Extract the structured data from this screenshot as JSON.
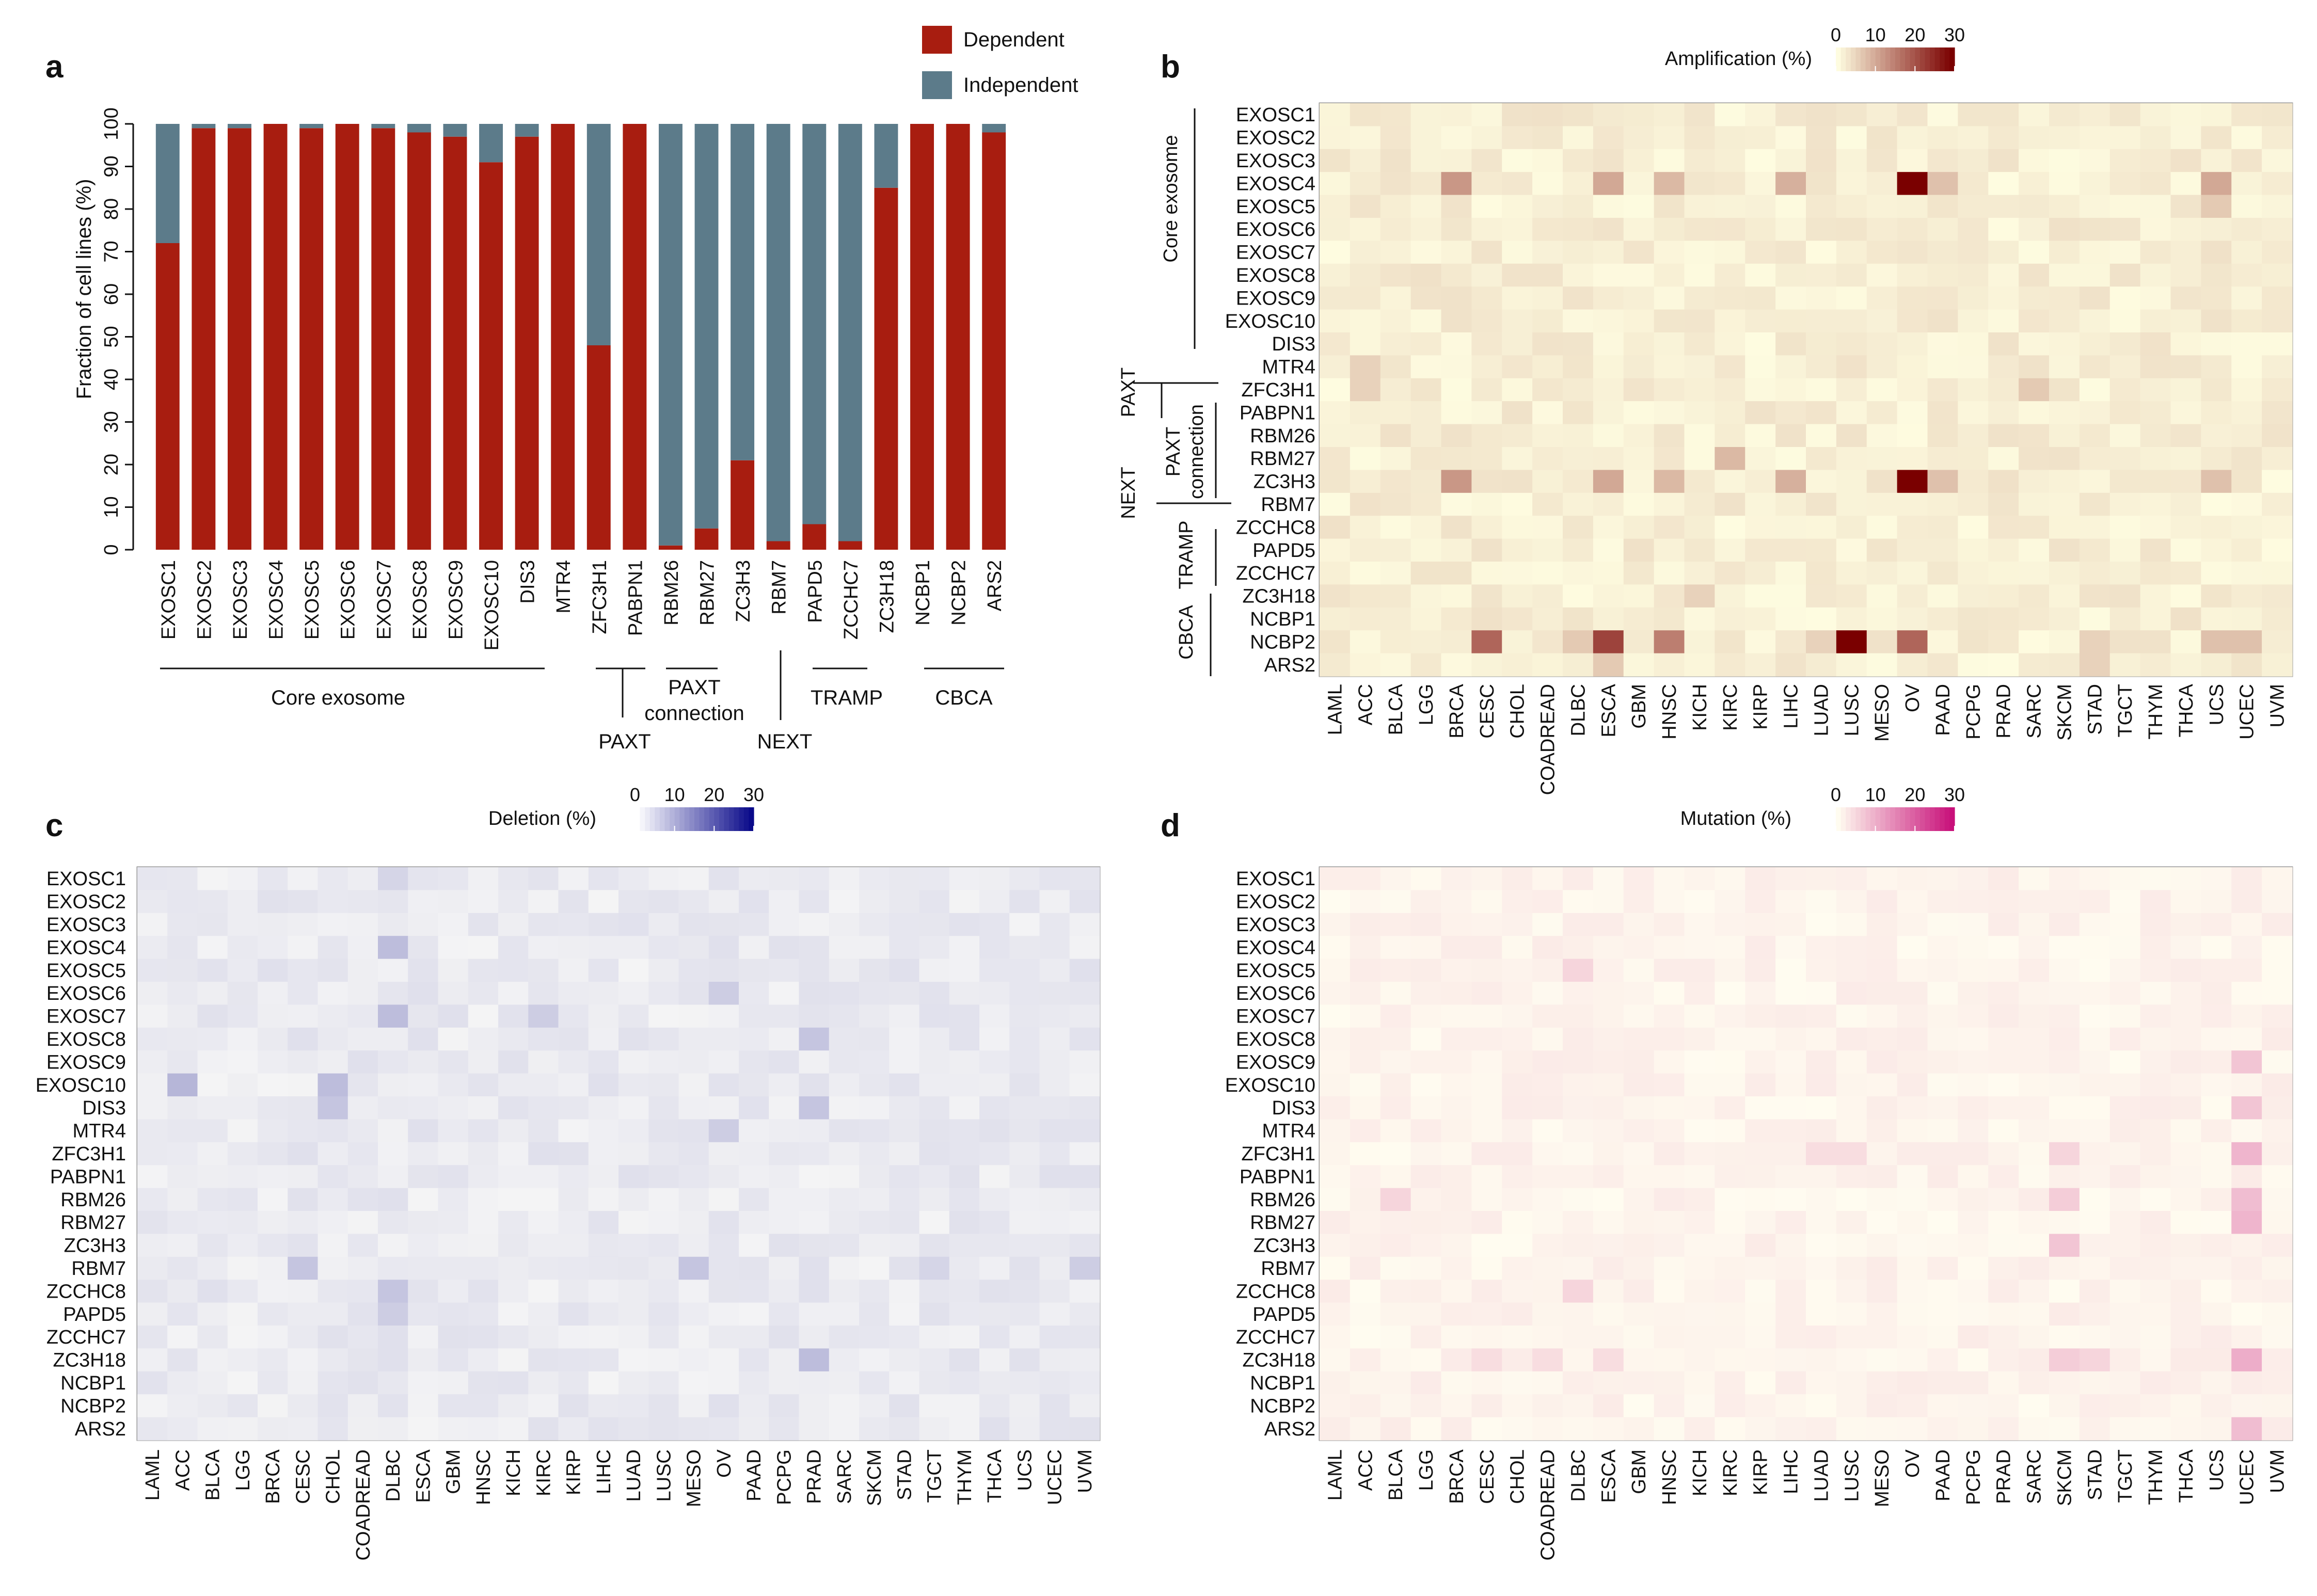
{
  "panels": {
    "a": "a",
    "b": "b",
    "c": "c",
    "d": "d"
  },
  "genes": [
    "EXOSC1",
    "EXOSC2",
    "EXOSC3",
    "EXOSC4",
    "EXOSC5",
    "EXOSC6",
    "EXOSC7",
    "EXOSC8",
    "EXOSC9",
    "EXOSC10",
    "DIS3",
    "MTR4",
    "ZFC3H1",
    "PABPN1",
    "RBM26",
    "RBM27",
    "ZC3H3",
    "RBM7",
    "PAPD5",
    "ZCCHC7",
    "ZC3H18",
    "NCBP1",
    "NCBP2",
    "ARS2"
  ],
  "heatmap_genes": [
    "EXOSC1",
    "EXOSC2",
    "EXOSC3",
    "EXOSC4",
    "EXOSC5",
    "EXOSC6",
    "EXOSC7",
    "EXOSC8",
    "EXOSC9",
    "EXOSC10",
    "DIS3",
    "MTR4",
    "ZFC3H1",
    "PABPN1",
    "RBM26",
    "RBM27",
    "ZC3H3",
    "RBM7",
    "ZCCHC8",
    "PAPD5",
    "ZCCHC7",
    "ZC3H18",
    "NCBP1",
    "NCBP2",
    "ARS2"
  ],
  "cancers": [
    "LAML",
    "ACC",
    "BLCA",
    "LGG",
    "BRCA",
    "CESC",
    "CHOL",
    "COADREAD",
    "DLBC",
    "ESCA",
    "GBM",
    "HNSC",
    "KICH",
    "KIRC",
    "KIRP",
    "LIHC",
    "LUAD",
    "LUSC",
    "MESO",
    "OV",
    "PAAD",
    "PCPG",
    "PRAD",
    "SARC",
    "SKCM",
    "STAD",
    "TGCT",
    "THYM",
    "THCA",
    "UCS",
    "UCEC",
    "UVM"
  ],
  "colors": {
    "dependent": "#a81d10",
    "independent": "#5c7b8a",
    "amp": "#7a0000",
    "del": "#0a0a8a",
    "mut": "#c8107a",
    "amp_bg": "#fefce0",
    "del_bg": "#f4f4f5",
    "mut_bg": "#fffcf0"
  },
  "groups_a": [
    {
      "label": "Core exosome",
      "line2": ""
    },
    {
      "label": "PAXT",
      "line2": ""
    },
    {
      "label": "PAXT",
      "line2": "connection"
    },
    {
      "label": "NEXT",
      "line2": ""
    },
    {
      "label": "TRAMP",
      "line2": ""
    },
    {
      "label": "CBCA",
      "line2": ""
    }
  ],
  "groups_b": [
    "Core exosome",
    "PAXT",
    "PAXT",
    "connection",
    "NEXT",
    "TRAMP",
    "CBCA"
  ],
  "chart_data": [
    {
      "type": "bar",
      "subtype": "stacked-100",
      "panel": "a",
      "ylabel": "Fraction of cell lines (%)",
      "ylim": [
        0,
        100
      ],
      "yticks": [
        "0",
        "10",
        "20",
        "30",
        "40",
        "50",
        "60",
        "70",
        "80",
        "90",
        "100"
      ],
      "categories": [
        "EXOSC1",
        "EXOSC2",
        "EXOSC3",
        "EXOSC4",
        "EXOSC5",
        "EXOSC6",
        "EXOSC7",
        "EXOSC8",
        "EXOSC9",
        "EXOSC10",
        "DIS3",
        "MTR4",
        "ZFC3H1",
        "PABPN1",
        "RBM26",
        "RBM27",
        "ZC3H3",
        "RBM7",
        "PAPD5",
        "ZCCHC7",
        "ZC3H18",
        "NCBP1",
        "NCBP2",
        "ARS2"
      ],
      "legend": [
        "Dependent",
        "Independent"
      ],
      "series": [
        {
          "name": "Dependent",
          "values": [
            72,
            99,
            99,
            100,
            99,
            100,
            99,
            98,
            97,
            91,
            97,
            100,
            48,
            100,
            1,
            5,
            21,
            2,
            6,
            2,
            85,
            100,
            100,
            98
          ]
        },
        {
          "name": "Independent",
          "values": [
            28,
            1,
            1,
            0,
            1,
            0,
            1,
            2,
            3,
            9,
            3,
            0,
            52,
            0,
            99,
            95,
            79,
            98,
            94,
            98,
            15,
            0,
            0,
            2
          ]
        }
      ]
    },
    {
      "type": "heatmap",
      "panel": "b",
      "title": "Amplification (%)",
      "scale": [
        "0",
        "10",
        "20",
        "30"
      ],
      "range": [
        0,
        30
      ],
      "hot": [
        {
          "gene": "EXOSC4",
          "cancer": "OV",
          "value": 30
        },
        {
          "gene": "ZC3H3",
          "cancer": "OV",
          "value": 30
        },
        {
          "gene": "NCBP2",
          "cancer": "LUSC",
          "value": 30
        },
        {
          "gene": "NCBP2",
          "cancer": "ESCA",
          "value": 22
        },
        {
          "gene": "NCBP2",
          "cancer": "CESC",
          "value": 18
        },
        {
          "gene": "NCBP2",
          "cancer": "OV",
          "value": 18
        },
        {
          "gene": "NCBP2",
          "cancer": "HNSC",
          "value": 15
        },
        {
          "gene": "EXOSC4",
          "cancer": "BRCA",
          "value": 12
        },
        {
          "gene": "ZC3H3",
          "cancer": "BRCA",
          "value": 12
        },
        {
          "gene": "EXOSC4",
          "cancer": "ESCA",
          "value": 10
        },
        {
          "gene": "ZC3H3",
          "cancer": "ESCA",
          "value": 10
        },
        {
          "gene": "EXOSC4",
          "cancer": "UCS",
          "value": 10
        },
        {
          "gene": "EXOSC4",
          "cancer": "LIHC",
          "value": 9
        },
        {
          "gene": "ZC3H3",
          "cancer": "LIHC",
          "value": 9
        },
        {
          "gene": "EXOSC4",
          "cancer": "HNSC",
          "value": 8
        },
        {
          "gene": "ZC3H3",
          "cancer": "HNSC",
          "value": 8
        },
        {
          "gene": "RBM27",
          "cancer": "KIRC",
          "value": 8
        },
        {
          "gene": "EXOSC4",
          "cancer": "PAAD",
          "value": 7
        },
        {
          "gene": "ZC3H3",
          "cancer": "PAAD",
          "value": 7
        },
        {
          "gene": "ZC3H3",
          "cancer": "UCS",
          "value": 7
        },
        {
          "gene": "NCBP2",
          "cancer": "UCS",
          "value": 7
        },
        {
          "gene": "NCBP2",
          "cancer": "UCEC",
          "value": 7
        },
        {
          "gene": "NCBP2",
          "cancer": "DLBC",
          "value": 6
        },
        {
          "gene": "ARS2",
          "cancer": "ESCA",
          "value": 6
        },
        {
          "gene": "ZFC3H1",
          "cancer": "SARC",
          "value": 6
        },
        {
          "gene": "EXOSC5",
          "cancer": "UCS",
          "value": 6
        },
        {
          "gene": "MTR4",
          "cancer": "ACC",
          "value": 5
        },
        {
          "gene": "ZFC3H1",
          "cancer": "ACC",
          "value": 5
        },
        {
          "gene": "ZC3H18",
          "cancer": "KICH",
          "value": 5
        },
        {
          "gene": "NCBP2",
          "cancer": "STAD",
          "value": 5
        },
        {
          "gene": "ARS2",
          "cancer": "STAD",
          "value": 5
        },
        {
          "gene": "NCBP2",
          "cancer": "LUAD",
          "value": 5
        }
      ]
    },
    {
      "type": "heatmap",
      "panel": "c",
      "title": "Deletion (%)",
      "scale": [
        "0",
        "10",
        "20",
        "30"
      ],
      "range": [
        0,
        30
      ],
      "hot": [
        {
          "gene": "EXOSC10",
          "cancer": "ACC",
          "value": 8
        },
        {
          "gene": "EXOSC10",
          "cancer": "CHOL",
          "value": 7
        },
        {
          "gene": "DIS3",
          "cancer": "CHOL",
          "value": 6
        },
        {
          "gene": "EXOSC4",
          "cancer": "DLBC",
          "value": 7
        },
        {
          "gene": "EXOSC7",
          "cancer": "DLBC",
          "value": 7
        },
        {
          "gene": "ZCCHC8",
          "cancer": "DLBC",
          "value": 6
        },
        {
          "gene": "PAPD5",
          "cancer": "DLBC",
          "value": 5
        },
        {
          "gene": "ZC3H18",
          "cancer": "PRAD",
          "value": 7
        },
        {
          "gene": "EXOSC8",
          "cancer": "PRAD",
          "value": 6
        },
        {
          "gene": "DIS3",
          "cancer": "PRAD",
          "value": 6
        },
        {
          "gene": "RBM7",
          "cancer": "CESC",
          "value": 6
        },
        {
          "gene": "RBM7",
          "cancer": "MESO",
          "value": 6
        },
        {
          "gene": "MTR4",
          "cancer": "OV",
          "value": 5
        },
        {
          "gene": "EXOSC6",
          "cancer": "OV",
          "value": 5
        },
        {
          "gene": "RBM7",
          "cancer": "UVM",
          "value": 5
        },
        {
          "gene": "EXOSC7",
          "cancer": "KIRC",
          "value": 5
        },
        {
          "gene": "EXOSC1",
          "cancer": "DLBC",
          "value": 4
        },
        {
          "gene": "RBM7",
          "cancer": "TGCT",
          "value": 4
        }
      ]
    },
    {
      "type": "heatmap",
      "panel": "d",
      "title": "Mutation (%)",
      "scale": [
        "0",
        "10",
        "20",
        "30"
      ],
      "range": [
        0,
        30
      ],
      "hot": [
        {
          "gene": "ZC3H18",
          "cancer": "UCEC",
          "value": 10
        },
        {
          "gene": "ZFC3H1",
          "cancer": "UCEC",
          "value": 9
        },
        {
          "gene": "RBM27",
          "cancer": "UCEC",
          "value": 9
        },
        {
          "gene": "RBM26",
          "cancer": "UCEC",
          "value": 8
        },
        {
          "gene": "ARS2",
          "cancer": "UCEC",
          "value": 8
        },
        {
          "gene": "EXOSC9",
          "cancer": "UCEC",
          "value": 7
        },
        {
          "gene": "DIS3",
          "cancer": "UCEC",
          "value": 7
        },
        {
          "gene": "ZC3H3",
          "cancer": "SKCM",
          "value": 7
        },
        {
          "gene": "RBM26",
          "cancer": "SKCM",
          "value": 6
        },
        {
          "gene": "ZC3H18",
          "cancer": "SKCM",
          "value": 6
        },
        {
          "gene": "EXOSC5",
          "cancer": "DLBC",
          "value": 5
        },
        {
          "gene": "ZCCHC8",
          "cancer": "DLBC",
          "value": 5
        },
        {
          "gene": "RBM26",
          "cancer": "BLCA",
          "value": 5
        },
        {
          "gene": "ZC3H18",
          "cancer": "STAD",
          "value": 5
        },
        {
          "gene": "ZC3H18",
          "cancer": "ESCA",
          "value": 4
        },
        {
          "gene": "ZC3H18",
          "cancer": "CESC",
          "value": 4
        },
        {
          "gene": "ZC3H18",
          "cancer": "COADREAD",
          "value": 4
        },
        {
          "gene": "ZFC3H1",
          "cancer": "LUSC",
          "value": 4
        },
        {
          "gene": "ZFC3H1",
          "cancer": "LUAD",
          "value": 4
        },
        {
          "gene": "ZFC3H1",
          "cancer": "SKCM",
          "value": 5
        }
      ]
    }
  ]
}
